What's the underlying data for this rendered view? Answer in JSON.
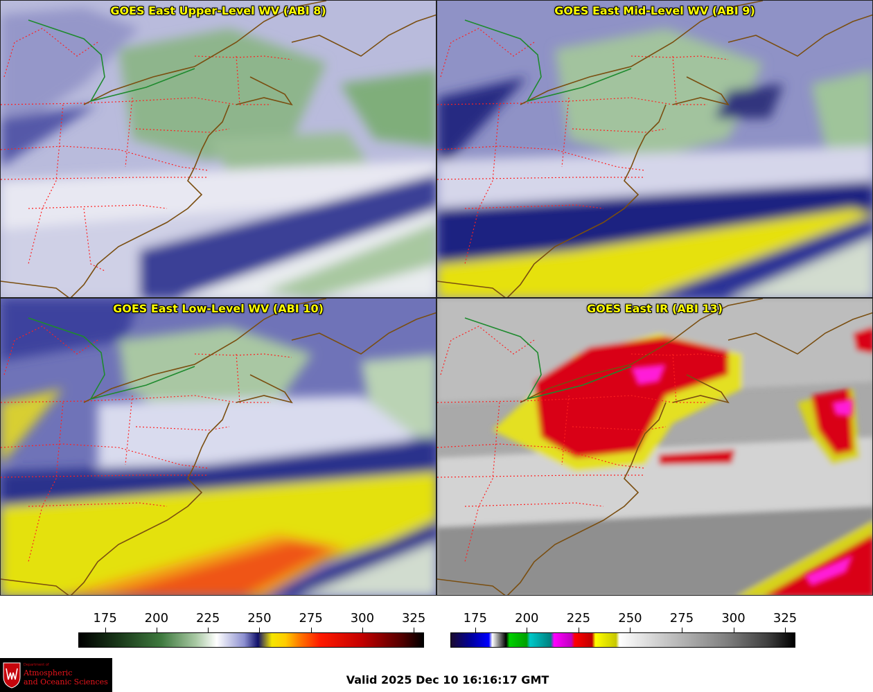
{
  "panels": {
    "upper": {
      "title": "GOES East Upper-Level WV (ABI 8)"
    },
    "mid": {
      "title": "GOES East Mid-Level WV (ABI 9)"
    },
    "low": {
      "title": "GOES East Low-Level WV (ABI 10)"
    },
    "ir": {
      "title": "GOES East IR (ABI 13)"
    }
  },
  "colorbars": {
    "wv": {
      "ticks": [
        "175",
        "200",
        "225",
        "250",
        "275",
        "300",
        "325"
      ],
      "min": 162,
      "max": 330
    },
    "ir": {
      "ticks": [
        "175",
        "200",
        "225",
        "250",
        "275",
        "300",
        "325"
      ],
      "min": 163,
      "max": 330
    }
  },
  "logo": {
    "dept": "Department of",
    "line1": "Atmospheric",
    "line2": "and Oceanic Sciences"
  },
  "valid_text": "Valid 2025 Dec 10 16:16:17 GMT",
  "colors": {
    "title_text": "#ffff00",
    "state_borders": "#ff2020",
    "coastline": "#7a4e10",
    "international_border": "#1e8a2e"
  }
}
